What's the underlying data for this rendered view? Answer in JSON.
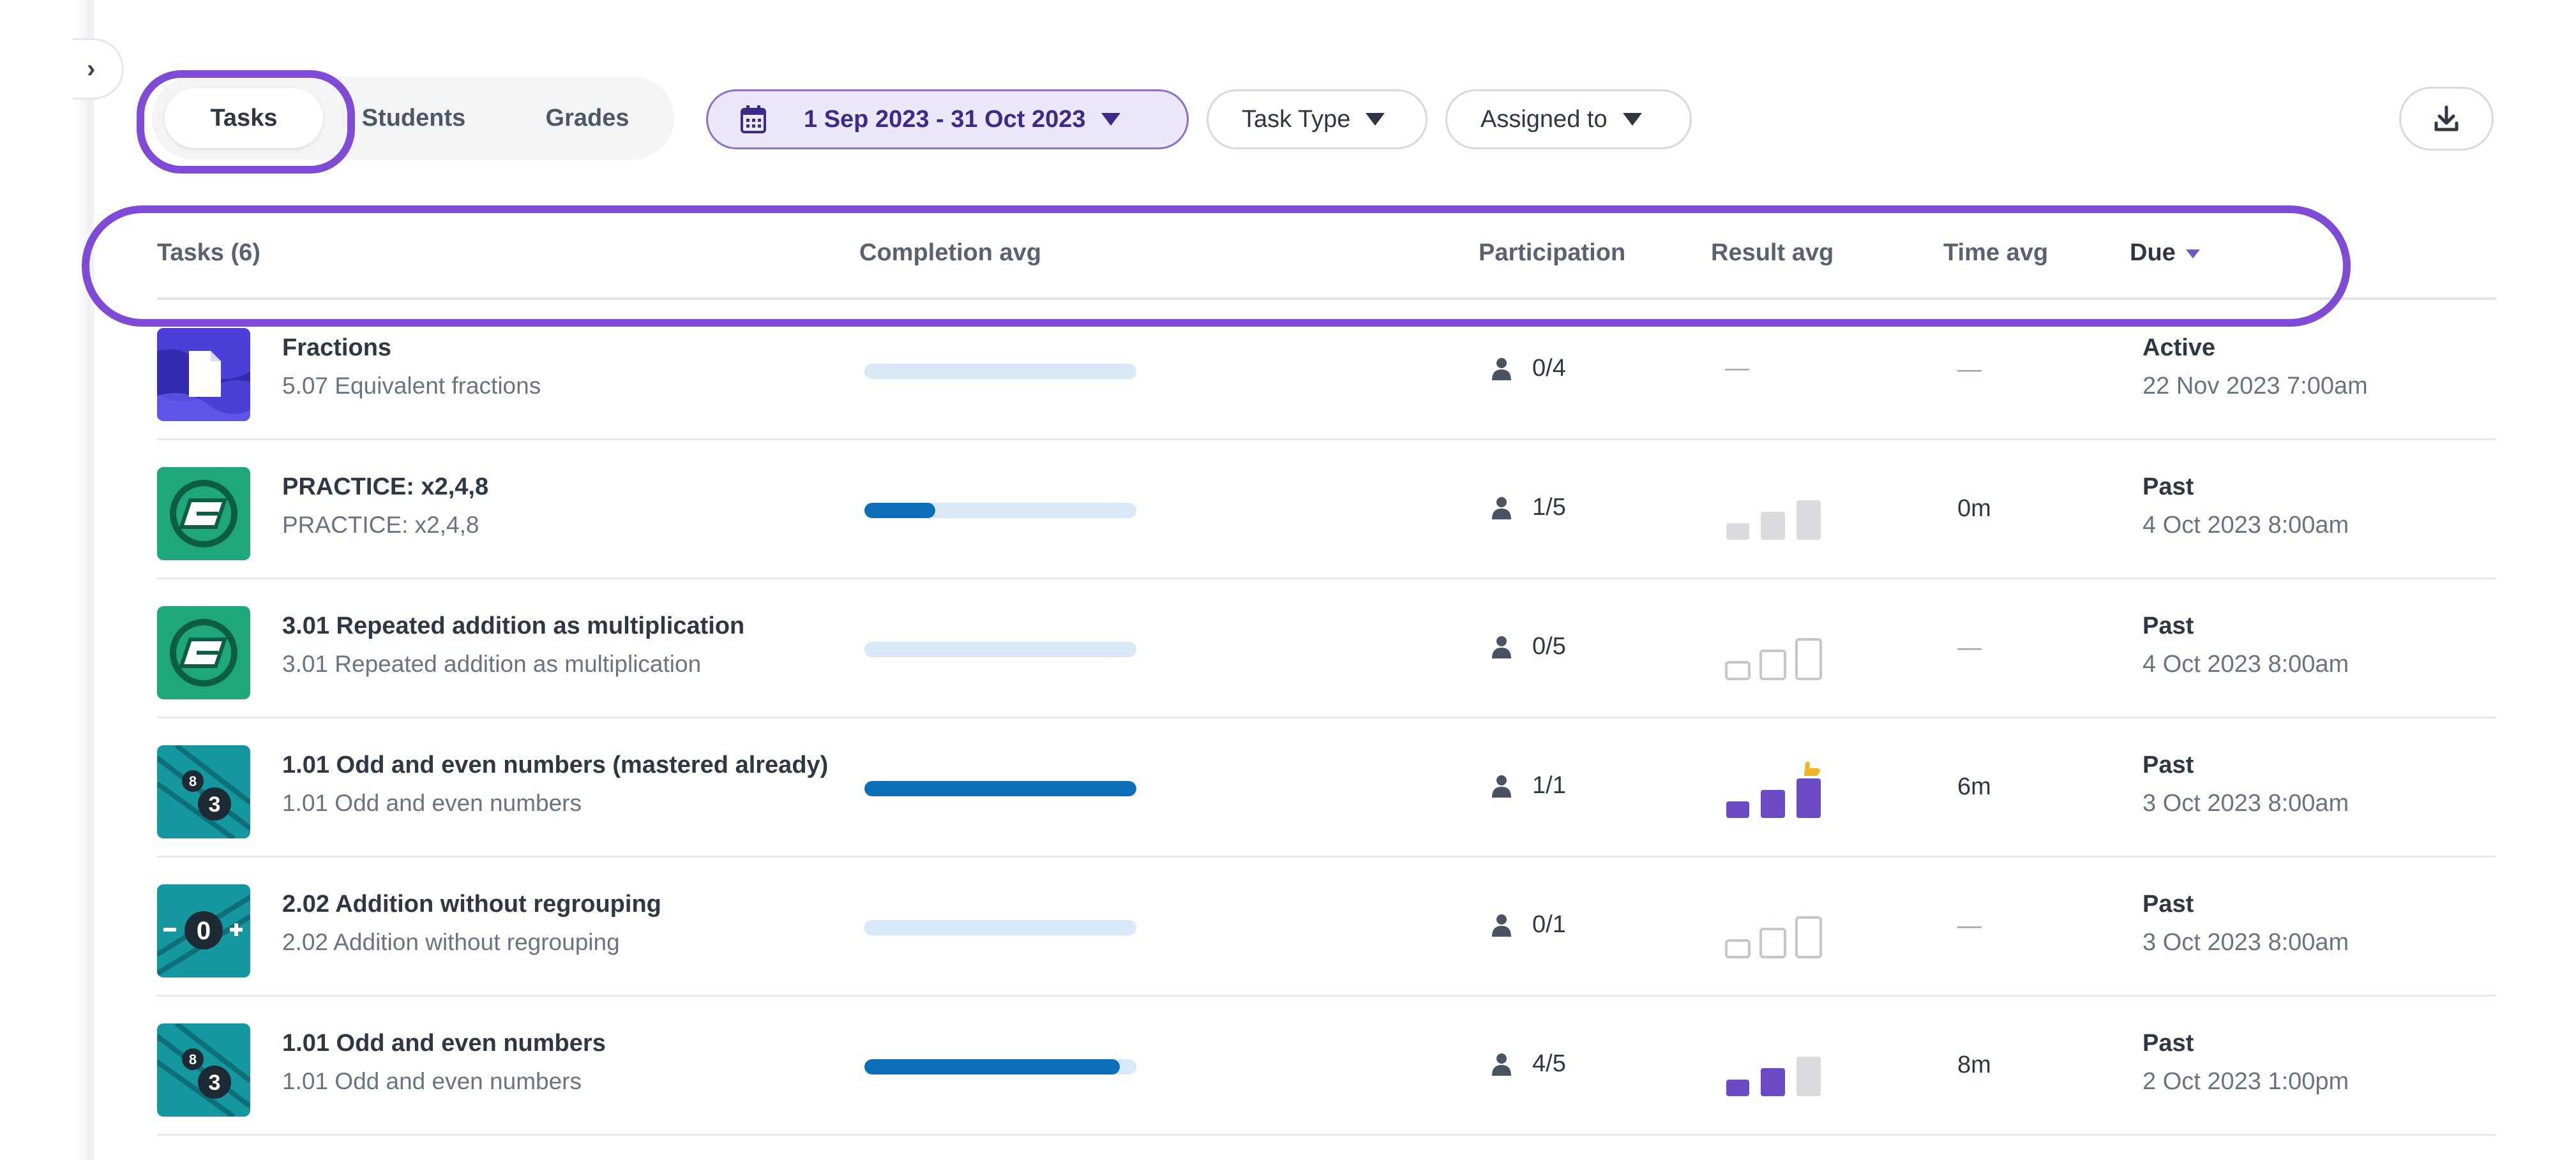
{
  "view_toggle": {
    "tasks_label": "Tasks",
    "students_label": "Students",
    "grades_label": "Grades",
    "active": "Tasks"
  },
  "filters": {
    "date_range": "1 Sep 2023 - 31 Oct 2023",
    "task_type": "Task Type",
    "assigned_to": "Assigned to"
  },
  "icons": {
    "collapse": "chevron-right-icon",
    "calendar": "calendar-icon",
    "download": "download-icon",
    "participation": "user-icon"
  },
  "colors": {
    "accent": "#7e4ad6",
    "progress": "#0d6fb8",
    "progress_track": "#d9e8f6",
    "result_filled": "#6a4bc4",
    "result_grey": "#d9dbde",
    "thumb_star": "#f0b429"
  },
  "table": {
    "headers": {
      "tasks": "Tasks (6)",
      "completion": "Completion avg",
      "participation": "Participation",
      "result": "Result avg",
      "time": "Time avg",
      "due": "Due"
    },
    "sort": {
      "column": "Due",
      "direction": "descending"
    },
    "rows": [
      {
        "title": "Fractions",
        "subtitle": "5.07 Equivalent fractions",
        "thumb": "document-icon",
        "completion_fraction": 0,
        "participation": "0/4",
        "result": "none",
        "result_text": "—",
        "time": "—",
        "due_status": "Active",
        "due_date": "22 Nov 2023 7:00am"
      },
      {
        "title": "PRACTICE: x2,4,8",
        "subtitle": "PRACTICE: x2,4,8",
        "thumb": "practice-icon",
        "completion_fraction": 0.26,
        "participation": "1/5",
        "result": "grey",
        "result_text": "",
        "time": "0m",
        "due_status": "Past",
        "due_date": "4 Oct 2023 8:00am"
      },
      {
        "title": "3.01 Repeated addition as multiplication",
        "subtitle": "3.01 Repeated addition as multiplication",
        "thumb": "practice-icon",
        "completion_fraction": 0,
        "participation": "0/5",
        "result": "outline",
        "result_text": "",
        "time": "—",
        "due_status": "Past",
        "due_date": "4 Oct 2023 8:00am"
      },
      {
        "title": "1.01 Odd and even numbers (mastered already)",
        "subtitle": "1.01 Odd and even numbers",
        "thumb": "numbers-icon",
        "completion_fraction": 1,
        "participation": "1/1",
        "result": "mastered",
        "result_text": "",
        "time": "6m",
        "due_status": "Past",
        "due_date": "3 Oct 2023 8:00am"
      },
      {
        "title": "2.02 Addition without regrouping",
        "subtitle": "2.02 Addition without regrouping",
        "thumb": "number-line-icon",
        "completion_fraction": 0,
        "participation": "0/1",
        "result": "outline",
        "result_text": "",
        "time": "—",
        "due_status": "Past",
        "due_date": "3 Oct 2023 8:00am"
      },
      {
        "title": "1.01 Odd and even numbers",
        "subtitle": "1.01 Odd and even numbers",
        "thumb": "numbers-icon",
        "completion_fraction": 0.94,
        "participation": "4/5",
        "result": "partial",
        "result_text": "",
        "time": "8m",
        "due_status": "Past",
        "due_date": "2 Oct 2023 1:00pm"
      }
    ]
  }
}
